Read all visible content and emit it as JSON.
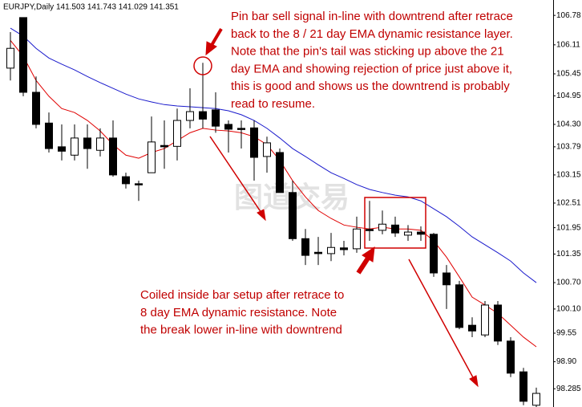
{
  "chart_data": {
    "type": "candlestick",
    "title": "EURJPY,Daily  141.503 141.743 141.029 141.351",
    "watermark": "图道交易",
    "annotations": [
      [
        "Pin bar sell signal in-line with downtrend after retrace",
        "back to the 8 / 21 day EMA dynamic resistance layer.",
        "Note that the pin's tail was sticking up above the 21",
        "day EMA and showing rejection of price just above it,",
        "this is good and shows us the downtrend is probably",
        "read to resume."
      ],
      [
        "Coiled inside bar setup after retrace to",
        "8 day EMA dynamic resistance. Note",
        "the break lower in-line with downtrend"
      ]
    ],
    "ylim": [
      97.87,
      107.13
    ],
    "yticks": [
      106.78,
      106.11,
      105.45,
      104.95,
      {
        "value": 104.3,
        "label": "104.30"
      },
      103.79,
      103.15,
      102.51,
      101.95,
      101.35,
      {
        "value": 100.7,
        "label": "100.70"
      },
      {
        "value": 100.1,
        "label": "100.10"
      },
      99.55,
      {
        "value": 98.9,
        "label": "98.90"
      },
      98.285
    ],
    "up_color": "#ffffff",
    "down_color": "#000000",
    "open": [
      105.58,
      106.73,
      105.03,
      104.33,
      103.79,
      103.6,
      103.99,
      103.71,
      103.99,
      103.11,
      102.95,
      103.2,
      103.82,
      103.8,
      104.39,
      104.59,
      104.63,
      104.3,
      104.21,
      104.22,
      103.57,
      103.66,
      102.75,
      101.7,
      101.39,
      101.36,
      101.49,
      101.47,
      101.91,
      101.89,
      102.01,
      101.78,
      101.85,
      101.8,
      100.92,
      100.65,
      99.73,
      99.51,
      100.19,
      99.37,
      98.67,
      97.91
    ],
    "high": [
      106.4,
      106.73,
      105.39,
      104.57,
      104.3,
      104.3,
      104.3,
      104.21,
      104.39,
      103.2,
      103.02,
      104.48,
      104.39,
      104.66,
      105.12,
      105.7,
      105.03,
      104.39,
      104.39,
      104.39,
      104.02,
      103.75,
      103.02,
      101.92,
      101.74,
      101.83,
      101.65,
      102.2,
      102.56,
      102.34,
      102.2,
      102.01,
      101.98,
      101.83,
      101.1,
      100.74,
      99.91,
      100.28,
      100.28,
      99.46,
      98.76,
      98.31
    ],
    "low": [
      105.3,
      104.94,
      104.21,
      103.66,
      103.48,
      103.48,
      103.29,
      103.57,
      103.11,
      102.84,
      102.56,
      103.2,
      103.29,
      103.48,
      104.21,
      104.21,
      104.11,
      103.66,
      103.75,
      103.02,
      103.2,
      102.75,
      101.65,
      101.1,
      101.1,
      101.19,
      101.32,
      101.38,
      101.65,
      101.8,
      101.74,
      101.65,
      101.65,
      100.83,
      100.1,
      99.64,
      99.46,
      99.46,
      99.28,
      98.55,
      97.91,
      97.87
    ],
    "close": [
      106.03,
      105.03,
      104.3,
      103.75,
      103.69,
      103.99,
      103.75,
      103.99,
      103.15,
      102.95,
      102.93,
      103.9,
      103.79,
      104.39,
      104.59,
      104.42,
      104.26,
      104.19,
      104.19,
      103.55,
      103.88,
      102.75,
      101.7,
      101.32,
      101.36,
      101.5,
      101.45,
      101.92,
      101.89,
      102.03,
      101.83,
      101.85,
      101.8,
      100.92,
      100.65,
      99.68,
      99.6,
      100.19,
      99.37,
      98.64,
      98.0,
      98.18
    ],
    "lines": [
      {
        "color": "#e00000",
        "values": [
          106.21,
          105.85,
          105.3,
          104.94,
          104.66,
          104.57,
          104.39,
          104.15,
          103.84,
          103.6,
          103.53,
          103.66,
          103.75,
          103.93,
          104.11,
          104.21,
          104.17,
          104.15,
          104.11,
          104.02,
          103.84,
          103.48,
          103.02,
          102.65,
          102.34,
          102.16,
          102.01,
          101.96,
          101.92,
          101.96,
          101.92,
          101.92,
          101.89,
          101.65,
          101.28,
          100.83,
          100.37,
          100.19,
          100.0,
          99.73,
          99.46,
          99.24
        ]
      },
      {
        "color": "#1a1acc",
        "values": [
          106.49,
          106.31,
          106.03,
          105.81,
          105.67,
          105.54,
          105.39,
          105.25,
          105.12,
          104.99,
          104.88,
          104.81,
          104.75,
          104.72,
          104.7,
          104.68,
          104.66,
          104.61,
          104.52,
          104.39,
          104.21,
          103.99,
          103.75,
          103.57,
          103.38,
          103.2,
          103.07,
          102.93,
          102.82,
          102.75,
          102.69,
          102.65,
          102.56,
          102.38,
          102.2,
          101.98,
          101.74,
          101.56,
          101.38,
          101.19,
          100.92,
          100.7
        ]
      }
    ]
  }
}
